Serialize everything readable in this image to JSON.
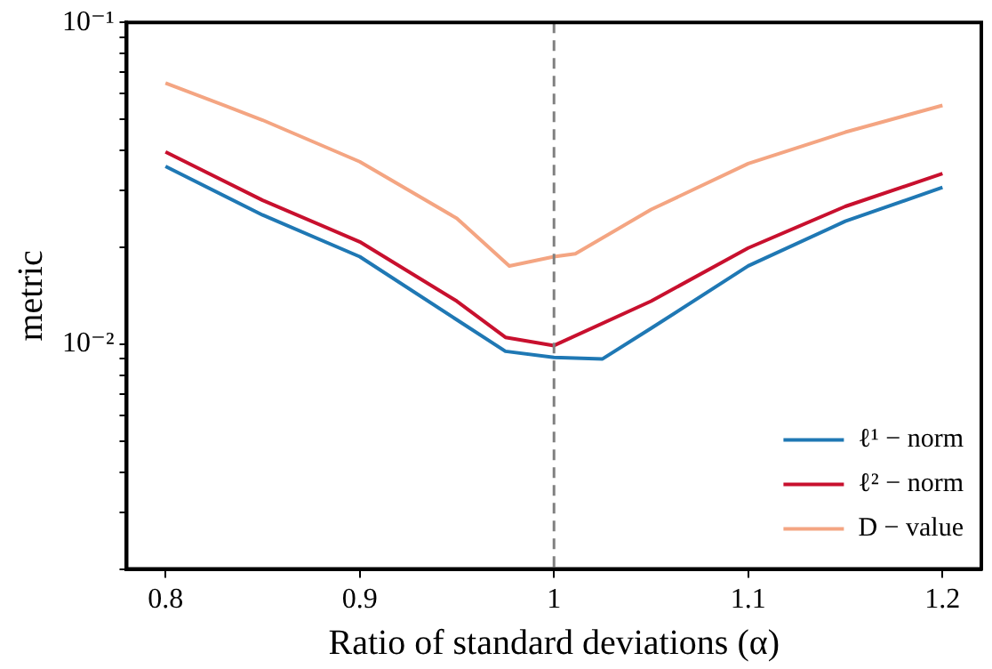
{
  "chart_data": {
    "type": "line",
    "xlabel": "Ratio of standard deviations (α)",
    "ylabel": "metric",
    "xlim": [
      0.78,
      1.22
    ],
    "xticks": [
      0.8,
      0.9,
      1,
      1.1,
      1.2
    ],
    "ylim": [
      0.002,
      0.1
    ],
    "log": "y",
    "yticks": [
      {
        "value": 0.002,
        "label": null
      },
      {
        "value": 0.003,
        "label": null
      },
      {
        "value": 0.004,
        "label": null
      },
      {
        "value": 0.005,
        "label": null
      },
      {
        "value": 0.006,
        "label": null
      },
      {
        "value": 0.007,
        "label": null
      },
      {
        "value": 0.008,
        "label": null
      },
      {
        "value": 0.009,
        "label": null
      },
      {
        "value": 0.01,
        "label": "10⁻²"
      },
      {
        "value": 0.02,
        "label": null
      },
      {
        "value": 0.03,
        "label": null
      },
      {
        "value": 0.04,
        "label": null
      },
      {
        "value": 0.05,
        "label": null
      },
      {
        "value": 0.06,
        "label": null
      },
      {
        "value": 0.07,
        "label": null
      },
      {
        "value": 0.08,
        "label": null
      },
      {
        "value": 0.09,
        "label": null
      },
      {
        "value": 0.1,
        "label": "10⁻¹"
      }
    ],
    "grid": false,
    "legend": "bottom right",
    "marker": "none",
    "line_style": "solid",
    "ref_lines": [
      {
        "axis": "x",
        "value": 1,
        "color": "#808080",
        "line_style": "dashed"
      }
    ],
    "series": [
      {
        "name": "ℓ¹ − norm",
        "color": "#1f78b4",
        "x": [
          0.8,
          0.85,
          0.9,
          0.95,
          0.975,
          1.0,
          1.025,
          1.05,
          1.1,
          1.15,
          1.2
        ],
        "values": [
          0.0357,
          0.0252,
          0.0187,
          0.0119,
          0.0095,
          0.0091,
          0.009,
          0.0112,
          0.0175,
          0.0241,
          0.0307
        ]
      },
      {
        "name": "ℓ² − norm",
        "color": "#c8102e",
        "x": [
          0.8,
          0.85,
          0.9,
          0.95,
          0.975,
          1.0,
          1.05,
          1.1,
          1.15,
          1.2
        ],
        "values": [
          0.0396,
          0.028,
          0.0208,
          0.0136,
          0.0105,
          0.0099,
          0.0136,
          0.0199,
          0.0268,
          0.0339
        ]
      },
      {
        "name": "D − value",
        "color": "#f4a582",
        "x": [
          0.8,
          0.85,
          0.9,
          0.95,
          0.977,
          1.0,
          1.011,
          1.05,
          1.1,
          1.15,
          1.2
        ],
        "values": [
          0.0648,
          0.0497,
          0.0369,
          0.0246,
          0.0175,
          0.0187,
          0.0191,
          0.0262,
          0.0364,
          0.0456,
          0.0552
        ]
      }
    ]
  }
}
